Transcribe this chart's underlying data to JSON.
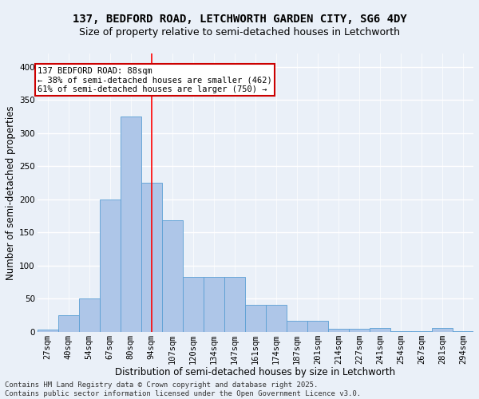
{
  "title_line1": "137, BEDFORD ROAD, LETCHWORTH GARDEN CITY, SG6 4DY",
  "title_line2": "Size of property relative to semi-detached houses in Letchworth",
  "xlabel": "Distribution of semi-detached houses by size in Letchworth",
  "ylabel": "Number of semi-detached properties",
  "bar_labels": [
    "27sqm",
    "40sqm",
    "54sqm",
    "67sqm",
    "80sqm",
    "94sqm",
    "107sqm",
    "120sqm",
    "134sqm",
    "147sqm",
    "161sqm",
    "174sqm",
    "187sqm",
    "201sqm",
    "214sqm",
    "227sqm",
    "241sqm",
    "254sqm",
    "267sqm",
    "281sqm",
    "294sqm"
  ],
  "bar_values": [
    3,
    25,
    50,
    200,
    325,
    225,
    168,
    83,
    83,
    83,
    40,
    40,
    16,
    16,
    4,
    4,
    5,
    1,
    1,
    5,
    1
  ],
  "bar_color": "#aec6e8",
  "bar_edge_color": "#5a9fd4",
  "background_color": "#eaf0f8",
  "grid_color": "#ffffff",
  "ylim": [
    0,
    420
  ],
  "yticks": [
    0,
    50,
    100,
    150,
    200,
    250,
    300,
    350,
    400
  ],
  "annotation_title": "137 BEDFORD ROAD: 88sqm",
  "annotation_line1": "← 38% of semi-detached houses are smaller (462)",
  "annotation_line2": "61% of semi-detached houses are larger (750) →",
  "vline_x_index": 5,
  "annotation_box_color": "#ffffff",
  "annotation_box_edge": "#cc0000",
  "footer_line1": "Contains HM Land Registry data © Crown copyright and database right 2025.",
  "footer_line2": "Contains public sector information licensed under the Open Government Licence v3.0.",
  "title_fontsize": 10,
  "subtitle_fontsize": 9,
  "axis_label_fontsize": 8.5,
  "tick_fontsize": 7.5,
  "annotation_fontsize": 7.5,
  "footer_fontsize": 6.5
}
